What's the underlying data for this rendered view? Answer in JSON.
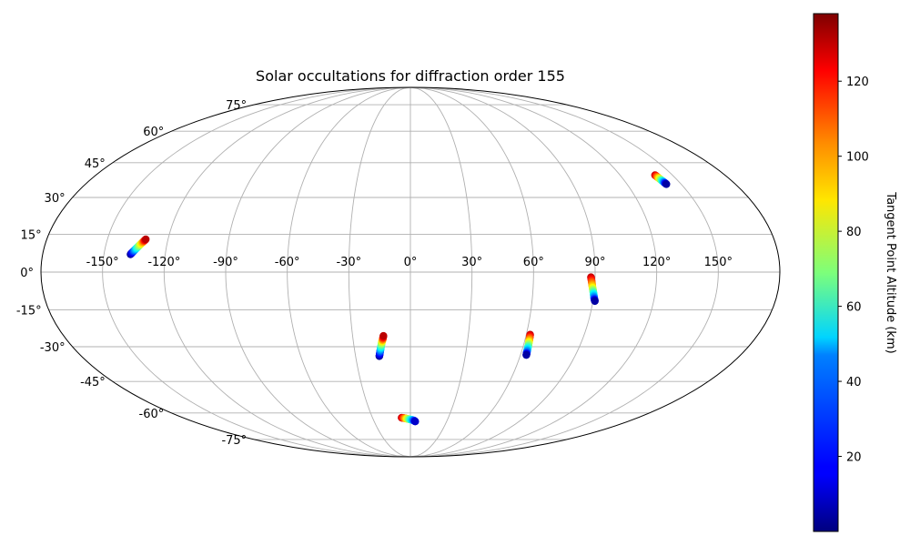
{
  "chart_data": {
    "type": "scatter",
    "projection": "mollweide",
    "title": "Solar occultations for diffraction order 155",
    "longitude_ticks": [
      "-150°",
      "-120°",
      "-90°",
      "-60°",
      "-30°",
      "0°",
      "30°",
      "60°",
      "90°",
      "120°",
      "150°"
    ],
    "latitude_ticks_left": [
      "-75°",
      "-60°",
      "-45°",
      "-30°",
      "-15°",
      "0°",
      "15°",
      "30°",
      "45°",
      "60°",
      "75°"
    ],
    "grid": true,
    "colormap": "jet",
    "colorbar": {
      "label": "Tangent Point Altitude (km)",
      "range": [
        0,
        138
      ],
      "ticks": [
        "20",
        "40",
        "60",
        "80",
        "100",
        "120"
      ],
      "tick_values": [
        20,
        40,
        60,
        80,
        100,
        120
      ],
      "placement": "right"
    },
    "series": [
      {
        "lon": [
          -137,
          -136,
          -135,
          -134,
          -133,
          -132,
          -131
        ],
        "lat": [
          7,
          8,
          9,
          10,
          11,
          12,
          13
        ],
        "altitude": [
          2,
          20,
          40,
          60,
          80,
          100,
          130
        ]
      },
      {
        "lon": [
          -17,
          -16.5,
          -16,
          -15.5,
          -15,
          -14.5,
          -14
        ],
        "lat": [
          -34,
          -32.5,
          -31,
          -29.5,
          -28,
          -27,
          -25.5
        ],
        "altitude": [
          2,
          20,
          40,
          60,
          80,
          100,
          130
        ]
      },
      {
        "lon": [
          -7,
          -5,
          -3,
          -1,
          1,
          3,
          4
        ],
        "lat": [
          -62.5,
          -62.7,
          -63,
          -63.3,
          -63.6,
          -64,
          -64.5
        ],
        "altitude": [
          130,
          110,
          90,
          70,
          50,
          30,
          10
        ]
      },
      {
        "lon": [
          62,
          62.2,
          62.4,
          62.6,
          62.8,
          63,
          63.2
        ],
        "lat": [
          -25,
          -26.5,
          -28,
          -29.5,
          -31,
          -32.5,
          -33.5
        ],
        "altitude": [
          130,
          110,
          90,
          70,
          50,
          30,
          5
        ]
      },
      {
        "lon": [
          88,
          88.5,
          89,
          89.5,
          90,
          90.5,
          91
        ],
        "lat": [
          -2,
          -4,
          -6,
          -7.5,
          -9,
          -10.5,
          -11.5
        ],
        "altitude": [
          130,
          110,
          90,
          70,
          50,
          30,
          5
        ]
      },
      {
        "lon": [
          140,
          140.3,
          140.6,
          140.9,
          141.2,
          141.5,
          141.8
        ],
        "lat": [
          39.5,
          38.8,
          38.1,
          37.4,
          36.8,
          36.2,
          35.6
        ],
        "altitude": [
          130,
          110,
          90,
          70,
          50,
          30,
          5
        ]
      }
    ]
  }
}
